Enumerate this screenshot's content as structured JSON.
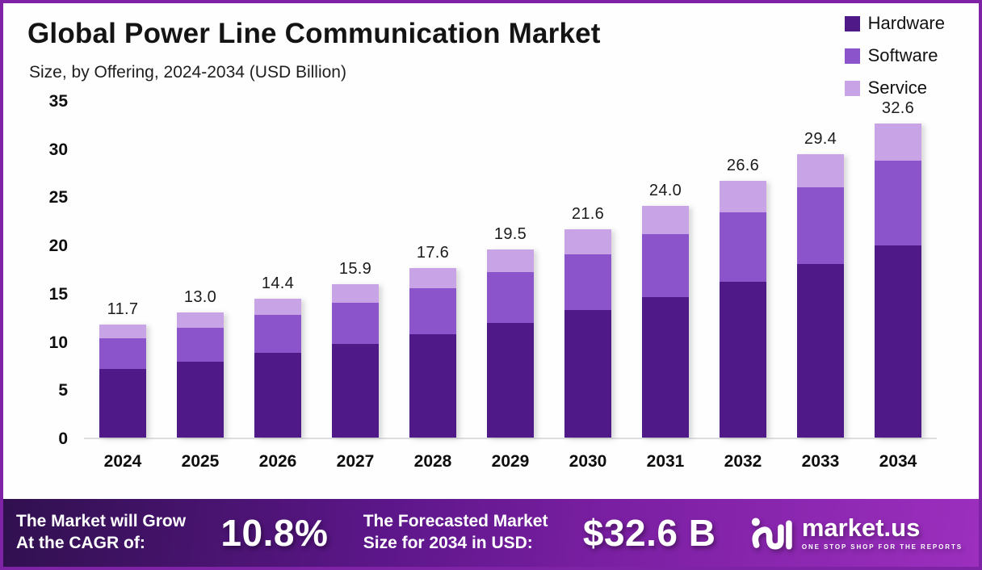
{
  "header": {
    "title": "Global Power Line Communication Market",
    "subtitle": "Size, by Offering, 2024-2034 (USD Billion)"
  },
  "colors": {
    "hardware": "#4F1A87",
    "software": "#8B54CB",
    "service": "#C8A4E6",
    "page_border": "#7E22A6",
    "axis_line": "#DEDEDE",
    "footer_gradient": [
      "#30104F",
      "#7A1FA2",
      "#9C2FBE"
    ]
  },
  "chart_data": {
    "type": "bar",
    "stacked": true,
    "title": "Global Power Line Communication Market",
    "subtitle": "Size, by Offering, 2024-2034 (USD Billion)",
    "xlabel": "",
    "ylabel": "USD Billion",
    "ylim": [
      0,
      35
    ],
    "yticks": [
      0,
      5,
      10,
      15,
      20,
      25,
      30,
      35
    ],
    "grid": false,
    "legend_position": "top-right",
    "categories": [
      "2024",
      "2025",
      "2026",
      "2027",
      "2028",
      "2029",
      "2030",
      "2031",
      "2032",
      "2033",
      "2034"
    ],
    "series": [
      {
        "name": "Hardware",
        "color": "#4F1A87",
        "values": [
          7.1,
          7.9,
          8.8,
          9.7,
          10.7,
          11.9,
          13.2,
          14.6,
          16.2,
          18.0,
          19.9
        ]
      },
      {
        "name": "Software",
        "color": "#8B54CB",
        "values": [
          3.2,
          3.5,
          3.9,
          4.3,
          4.8,
          5.3,
          5.8,
          6.5,
          7.2,
          8.0,
          8.8
        ]
      },
      {
        "name": "Service",
        "color": "#C8A4E6",
        "values": [
          1.4,
          1.6,
          1.7,
          1.9,
          2.1,
          2.3,
          2.6,
          2.9,
          3.2,
          3.4,
          3.9
        ]
      }
    ],
    "totals": [
      "11.7",
      "13.0",
      "14.4",
      "15.9",
      "17.6",
      "19.5",
      "21.6",
      "24.0",
      "26.6",
      "29.4",
      "32.6"
    ]
  },
  "legend": [
    {
      "label": "Hardware",
      "color": "#4F1A87"
    },
    {
      "label": "Software",
      "color": "#8B54CB"
    },
    {
      "label": "Service",
      "color": "#C8A4E6"
    }
  ],
  "footer": {
    "cagr_text": "The Market will Grow\nAt the CAGR of:",
    "cagr_value": "10.8%",
    "forecast_text": "The Forecasted Market\nSize for 2034 in USD:",
    "forecast_value": "$32.6 B",
    "brand": "market.us",
    "brand_tagline": "ONE STOP SHOP FOR THE REPORTS"
  }
}
